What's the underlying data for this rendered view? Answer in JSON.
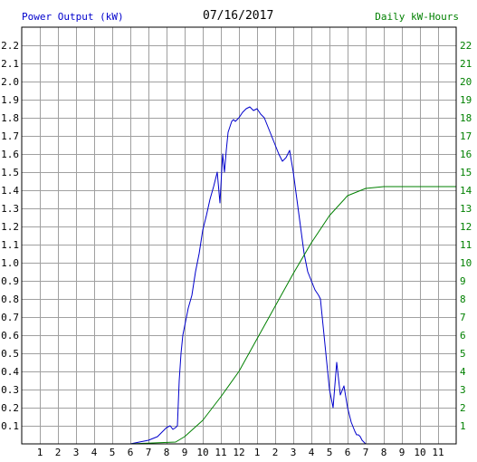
{
  "chart_data": {
    "type": "line",
    "title": "07/16/2017",
    "ylabel_left": "Power Output (kW)",
    "ylabel_right": "Daily kW-Hours",
    "x_ticks": [
      "1",
      "2",
      "3",
      "4",
      "5",
      "6",
      "7",
      "8",
      "9",
      "10",
      "11",
      "12",
      "1",
      "2",
      "3",
      "4",
      "5",
      "6",
      "7",
      "8",
      "9",
      "10",
      "11"
    ],
    "x_range_hours": [
      0,
      24
    ],
    "y_left_range": [
      0,
      2.3
    ],
    "y_left_ticks": [
      "0.1",
      "0.2",
      "0.3",
      "0.4",
      "0.5",
      "0.6",
      "0.7",
      "0.8",
      "0.9",
      "1.0",
      "1.1",
      "1.2",
      "1.3",
      "1.4",
      "1.5",
      "1.6",
      "1.7",
      "1.8",
      "1.9",
      "2.0",
      "2.1",
      "2.2"
    ],
    "y_right_range": [
      0,
      23
    ],
    "y_right_ticks": [
      "1",
      "2",
      "3",
      "4",
      "5",
      "6",
      "7",
      "8",
      "9",
      "10",
      "11",
      "12",
      "13",
      "14",
      "15",
      "16",
      "17",
      "18",
      "19",
      "20",
      "21",
      "22"
    ],
    "grid": true,
    "colors": {
      "power": "#0000cc",
      "energy": "#008000",
      "grid": "#a0a0a0",
      "border": "#000000"
    },
    "series": [
      {
        "axis": "left",
        "color": "#0000cc",
        "x": [
          6.0,
          6.5,
          7.0,
          7.5,
          7.8,
          8.0,
          8.2,
          8.35,
          8.5,
          8.6,
          8.7,
          8.8,
          8.9,
          9.0,
          9.2,
          9.4,
          9.6,
          9.8,
          10.0,
          10.2,
          10.4,
          10.6,
          10.8,
          10.95,
          11.1,
          11.2,
          11.3,
          11.4,
          11.5,
          11.6,
          11.7,
          11.8,
          12.0,
          12.2,
          12.4,
          12.6,
          12.8,
          13.0,
          13.2,
          13.4,
          13.6,
          13.8,
          14.0,
          14.2,
          14.4,
          14.6,
          14.8,
          15.0,
          15.2,
          15.4,
          15.6,
          15.8,
          16.0,
          16.2,
          16.4,
          16.5,
          16.6,
          16.8,
          17.0,
          17.2,
          17.4,
          17.6,
          17.8,
          18.0,
          18.2,
          18.4,
          18.5,
          18.6,
          18.7,
          18.8,
          18.9,
          19.0,
          19.1,
          19.2,
          19.3,
          19.4,
          19.5,
          19.6,
          19.7,
          19.8,
          20.0,
          20.2,
          20.4,
          20.6,
          20.8,
          21.0
        ],
        "values": [
          0.0,
          0.01,
          0.02,
          0.04,
          0.07,
          0.09,
          0.1,
          0.08,
          0.09,
          0.1,
          0.35,
          0.5,
          0.6,
          0.65,
          0.75,
          0.82,
          0.95,
          1.05,
          1.18,
          1.26,
          1.35,
          1.42,
          1.5,
          1.33,
          1.6,
          1.5,
          1.62,
          1.72,
          1.75,
          1.78,
          1.79,
          1.78,
          1.8,
          1.83,
          1.85,
          1.86,
          1.84,
          1.85,
          1.82,
          1.8,
          1.75,
          1.7,
          1.65,
          1.6,
          1.56,
          1.58,
          1.62,
          1.5,
          1.35,
          1.2,
          1.05,
          0.95,
          0.9,
          0.85,
          0.82,
          0.8,
          0.7,
          0.5,
          0.3,
          0.2,
          0.45,
          0.27,
          0.32,
          0.2,
          0.12,
          0.07,
          0.05,
          0.05,
          0.04,
          0.02,
          0.01,
          0.0,
          0.0,
          0.0,
          0.0,
          0.0,
          0.0,
          0.0,
          0.0,
          0.0,
          0.0,
          0.0,
          0.0,
          0.0,
          0.0,
          0.0
        ]
      },
      {
        "axis": "right",
        "color": "#008000",
        "x": [
          6.0,
          8.5,
          9.0,
          10.0,
          11.0,
          12.0,
          13.0,
          14.0,
          15.0,
          16.0,
          17.0,
          18.0,
          19.0,
          20.0,
          24.0
        ],
        "values": [
          0.0,
          0.1,
          0.4,
          1.3,
          2.6,
          4.0,
          5.8,
          7.6,
          9.4,
          11.1,
          12.6,
          13.7,
          14.1,
          14.2,
          14.2
        ]
      }
    ]
  }
}
